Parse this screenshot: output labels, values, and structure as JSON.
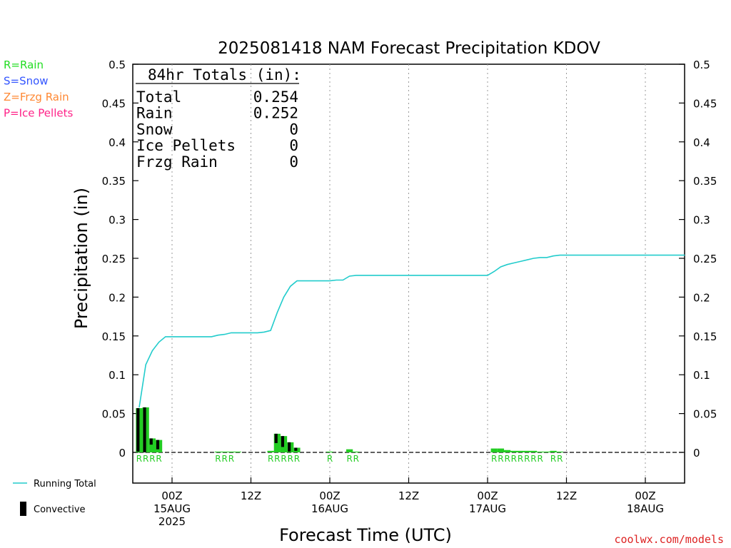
{
  "title": "2025081418 NAM Forecast Precipitation KDOV",
  "credit": "coolwx.com/models",
  "type_legend": [
    {
      "label": "R=Rain",
      "color": "#22dd22"
    },
    {
      "label": "S=Snow",
      "color": "#3355ff"
    },
    {
      "label": "Z=Frzg Rain",
      "color": "#ff8833"
    },
    {
      "label": "P=Ice Pellets",
      "color": "#ff2288"
    }
  ],
  "series_legend": {
    "running_total": "Running Total",
    "convective": "Convective"
  },
  "totals": {
    "header": "84hr Totals (in):",
    "rows": [
      {
        "label": "Total",
        "value": "0.254"
      },
      {
        "label": "Rain",
        "value": "0.252"
      },
      {
        "label": "Snow",
        "value": "0"
      },
      {
        "label": "Ice Pellets",
        "value": "0"
      },
      {
        "label": "Frzg Rain",
        "value": "0"
      }
    ]
  },
  "colors": {
    "running_total": "#22cccc",
    "precip_bar": "#22cc22",
    "convective_bar": "#000000",
    "ptype": "#22cc22"
  },
  "chart_data": {
    "type": "bar",
    "title": "2025081418 NAM Forecast Precipitation KDOV",
    "xlabel": "Forecast Time (UTC)",
    "ylabel": "Precipitation (in)",
    "ylim": [
      0,
      0.5
    ],
    "yticks": [
      "0",
      "0.05",
      "0.1",
      "0.15",
      "0.2",
      "0.25",
      "0.3",
      "0.35",
      "0.4",
      "0.45",
      "0.5"
    ],
    "xlim_hours": [
      18,
      102
    ],
    "xticks": [
      {
        "hour": 24,
        "lines": [
          "00Z",
          "15AUG",
          "2025"
        ]
      },
      {
        "hour": 36,
        "lines": [
          "12Z"
        ]
      },
      {
        "hour": 48,
        "lines": [
          "00Z",
          "16AUG"
        ]
      },
      {
        "hour": 60,
        "lines": [
          "12Z"
        ]
      },
      {
        "hour": 72,
        "lines": [
          "00Z",
          "17AUG"
        ]
      },
      {
        "hour": 84,
        "lines": [
          "12Z"
        ]
      },
      {
        "hour": 96,
        "lines": [
          "00Z",
          "18AUG"
        ]
      }
    ],
    "grid": "vertical dotted at 00Z/12Z",
    "running_total": {
      "name": "Running Total",
      "x": [
        19,
        20,
        21,
        22,
        23,
        30,
        31,
        32,
        33,
        34,
        35,
        36,
        37,
        38,
        39,
        40,
        41,
        42,
        43,
        44,
        45,
        46,
        47,
        48,
        49,
        50,
        51,
        52,
        53,
        54,
        55,
        56,
        57,
        58,
        59,
        60,
        61,
        62,
        63,
        64,
        65,
        66,
        67,
        68,
        69,
        70,
        71,
        72,
        73,
        74,
        75,
        76,
        77,
        78,
        79,
        80,
        81,
        82,
        83,
        84,
        85,
        86,
        87,
        88,
        89,
        90,
        91,
        92,
        93,
        94,
        95,
        96,
        97,
        98,
        99,
        100,
        101,
        102
      ],
      "y": [
        0.058,
        0.113,
        0.131,
        0.142,
        0.149,
        0.149,
        0.151,
        0.152,
        0.154,
        0.154,
        0.154,
        0.154,
        0.154,
        0.155,
        0.157,
        0.18,
        0.2,
        0.214,
        0.221,
        0.221,
        0.221,
        0.221,
        0.221,
        0.221,
        0.222,
        0.222,
        0.227,
        0.228,
        0.228,
        0.228,
        0.228,
        0.228,
        0.228,
        0.228,
        0.228,
        0.228,
        0.228,
        0.228,
        0.228,
        0.228,
        0.228,
        0.228,
        0.228,
        0.228,
        0.228,
        0.228,
        0.228,
        0.228,
        0.233,
        0.239,
        0.242,
        0.244,
        0.246,
        0.248,
        0.25,
        0.251,
        0.251,
        0.253,
        0.254,
        0.254,
        0.254,
        0.254,
        0.254,
        0.254,
        0.254,
        0.254,
        0.254,
        0.254,
        0.254,
        0.254,
        0.254,
        0.254,
        0.254,
        0.254,
        0.254,
        0.254,
        0.254,
        0.254
      ]
    },
    "hourly_precip": {
      "name": "hourly precipitation",
      "hours": [
        19,
        20,
        21,
        22,
        31,
        32,
        33,
        34,
        39,
        40,
        41,
        42,
        43,
        48,
        51,
        52,
        73,
        74,
        75,
        76,
        77,
        78,
        79,
        80,
        81,
        82,
        83
      ],
      "total": [
        0.057,
        0.058,
        0.018,
        0.016,
        0.001,
        0.001,
        0.001,
        0.001,
        0.002,
        0.024,
        0.021,
        0.013,
        0.006,
        0.001,
        0.004,
        0.001,
        0.005,
        0.005,
        0.003,
        0.002,
        0.002,
        0.002,
        0.002,
        0.001,
        0.001,
        0.002,
        0.001
      ],
      "convective": [
        0.028,
        0.03,
        0.004,
        0.006,
        0,
        0,
        0,
        0,
        0,
        0.006,
        0.007,
        0.006,
        0.002,
        0,
        0,
        0,
        0,
        0,
        0,
        0,
        0,
        0,
        0,
        0,
        0,
        0,
        0
      ],
      "ptype": [
        "R",
        "R",
        "R",
        "R",
        "R",
        "R",
        "R",
        "",
        "R",
        "R",
        "R",
        "R",
        "R",
        "R",
        "R",
        "R",
        "R",
        "R",
        "R",
        "R",
        "R",
        "R",
        "R",
        "R",
        "",
        "R",
        "R"
      ]
    }
  }
}
